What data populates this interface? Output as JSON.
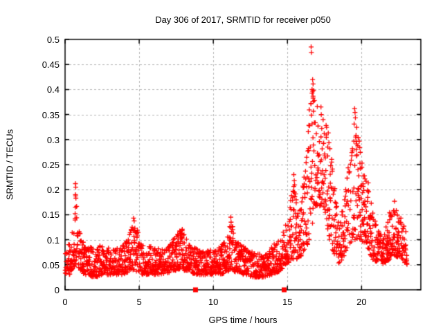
{
  "chart_data": {
    "type": "scatter",
    "title": "Day 306 of 2017, SRMTID for receiver p050",
    "xlabel": "GPS time / hours",
    "ylabel": "SRMTID / TECUs",
    "xlim": [
      0,
      24
    ],
    "ylim": [
      0,
      0.5
    ],
    "xtick_values": [
      0,
      5,
      10,
      15,
      20
    ],
    "xtick_labels": [
      "0",
      "5",
      "10",
      "15",
      "20"
    ],
    "ytick_values": [
      0,
      0.05,
      0.1,
      0.15,
      0.2,
      0.25,
      0.3,
      0.35,
      0.4,
      0.45,
      0.5
    ],
    "ytick_labels": [
      "0",
      "0.05",
      "0.1",
      "0.15",
      "0.2",
      "0.25",
      "0.3",
      "0.35",
      "0.4",
      "0.45",
      "0.5"
    ],
    "grid": {
      "show": true,
      "color": "#b5b5b5",
      "dash": [
        3,
        3
      ]
    },
    "border_color": "#000000",
    "marker": {
      "shape": "plus",
      "color": "#ff0000",
      "size": 7
    },
    "series": [
      {
        "name": "SRMTID",
        "envelope": [
          [
            0.0,
            0.03,
            0.11
          ],
          [
            0.3,
            0.03,
            0.095
          ],
          [
            0.55,
            0.04,
            0.14
          ],
          [
            0.75,
            0.05,
            0.2
          ],
          [
            0.95,
            0.04,
            0.13
          ],
          [
            1.3,
            0.03,
            0.09
          ],
          [
            2.0,
            0.025,
            0.085
          ],
          [
            2.6,
            0.03,
            0.09
          ],
          [
            3.2,
            0.03,
            0.08
          ],
          [
            3.8,
            0.03,
            0.085
          ],
          [
            4.3,
            0.035,
            0.11
          ],
          [
            4.65,
            0.04,
            0.14
          ],
          [
            4.95,
            0.035,
            0.115
          ],
          [
            5.3,
            0.03,
            0.09
          ],
          [
            6.0,
            0.03,
            0.085
          ],
          [
            6.6,
            0.03,
            0.08
          ],
          [
            7.1,
            0.035,
            0.09
          ],
          [
            7.6,
            0.04,
            0.115
          ],
          [
            7.95,
            0.04,
            0.125
          ],
          [
            8.35,
            0.035,
            0.09
          ],
          [
            9.0,
            0.03,
            0.08
          ],
          [
            9.8,
            0.03,
            0.08
          ],
          [
            10.4,
            0.03,
            0.085
          ],
          [
            10.9,
            0.035,
            0.1
          ],
          [
            11.2,
            0.04,
            0.14
          ],
          [
            11.55,
            0.035,
            0.1
          ],
          [
            12.1,
            0.03,
            0.085
          ],
          [
            12.8,
            0.025,
            0.075
          ],
          [
            13.4,
            0.025,
            0.07
          ],
          [
            13.9,
            0.03,
            0.085
          ],
          [
            14.4,
            0.035,
            0.105
          ],
          [
            14.75,
            0.045,
            0.13
          ],
          [
            15.1,
            0.055,
            0.155
          ],
          [
            15.45,
            0.06,
            0.225
          ],
          [
            15.75,
            0.06,
            0.16
          ],
          [
            16.05,
            0.07,
            0.21
          ],
          [
            16.35,
            0.09,
            0.31
          ],
          [
            16.65,
            0.12,
            0.43
          ],
          [
            16.95,
            0.15,
            0.38
          ],
          [
            17.25,
            0.17,
            0.37
          ],
          [
            17.55,
            0.15,
            0.355
          ],
          [
            17.85,
            0.1,
            0.3
          ],
          [
            18.15,
            0.07,
            0.22
          ],
          [
            18.55,
            0.045,
            0.135
          ],
          [
            18.85,
            0.07,
            0.2
          ],
          [
            19.15,
            0.09,
            0.26
          ],
          [
            19.55,
            0.1,
            0.35
          ],
          [
            19.85,
            0.1,
            0.3
          ],
          [
            20.15,
            0.095,
            0.255
          ],
          [
            20.45,
            0.08,
            0.215
          ],
          [
            20.75,
            0.06,
            0.16
          ],
          [
            21.1,
            0.055,
            0.12
          ],
          [
            21.5,
            0.05,
            0.11
          ],
          [
            21.85,
            0.06,
            0.15
          ],
          [
            22.15,
            0.07,
            0.195
          ],
          [
            22.45,
            0.065,
            0.16
          ],
          [
            22.75,
            0.06,
            0.135
          ],
          [
            23.05,
            0.05,
            0.12
          ]
        ]
      }
    ],
    "outlier_points": [
      [
        0.7,
        0.212
      ],
      [
        0.72,
        0.205
      ],
      [
        0.7,
        0.19
      ],
      [
        0.73,
        0.183
      ],
      [
        0.7,
        0.165
      ],
      [
        0.68,
        0.152
      ],
      [
        4.62,
        0.143
      ],
      [
        11.18,
        0.145
      ],
      [
        11.2,
        0.135
      ],
      [
        15.43,
        0.23
      ],
      [
        15.46,
        0.218
      ],
      [
        16.6,
        0.485
      ],
      [
        16.62,
        0.474
      ],
      [
        16.7,
        0.42
      ],
      [
        16.73,
        0.411
      ],
      [
        16.66,
        0.4
      ],
      [
        16.82,
        0.378
      ],
      [
        16.58,
        0.372
      ],
      [
        19.53,
        0.362
      ],
      [
        19.56,
        0.354
      ],
      [
        19.5,
        0.331
      ],
      [
        19.6,
        0.305
      ]
    ],
    "zero_markers": {
      "shape": "square",
      "color": "#ff0000",
      "size": 7,
      "y": 0,
      "x": [
        8.8,
        14.78
      ]
    },
    "sampling": {
      "seed": 306,
      "epochs_per_hour": 30,
      "points_min": 2,
      "points_max": 4,
      "t_start": 0.02,
      "t_end": 23.08,
      "bias_exp": 1.5,
      "t_jitter": 0.013,
      "high_tail_prob": 0.045
    }
  }
}
